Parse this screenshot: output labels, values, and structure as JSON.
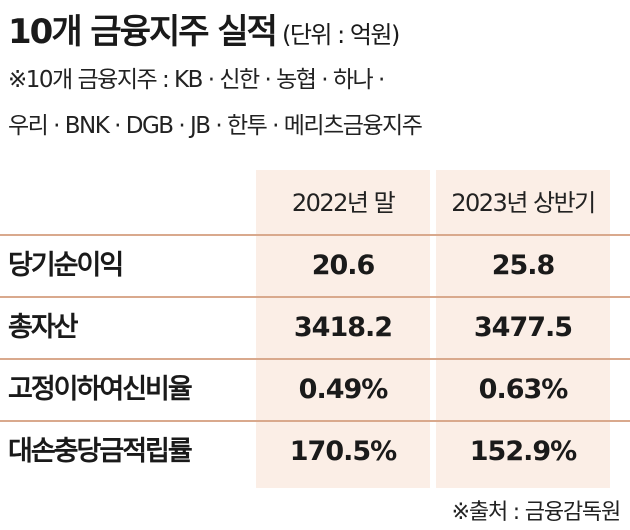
{
  "title": "10개 금융지주 실적",
  "unit": "(단위 : 억원)",
  "note_line1": "※10개 금융지주 : KB · 신한 · 농협 · 하나 ·",
  "note_line2": "우리 · BNK · DGB · JB · 한투 · 메리츠금융지주",
  "source": "※출처 : 금융감독원",
  "colors": {
    "column_bg": "#fbeee6",
    "rule": "#d9a98d",
    "text": "#1a1a1a"
  },
  "chart_data": {
    "type": "table",
    "columns": [
      "2022년 말",
      "2023년 상반기"
    ],
    "rows": [
      {
        "label": "당기순이익",
        "values": [
          "20.6",
          "25.8"
        ]
      },
      {
        "label": "총자산",
        "values": [
          "3418.2",
          "3477.5"
        ]
      },
      {
        "label": "고정이하여신비율",
        "values": [
          "0.49%",
          "0.63%"
        ]
      },
      {
        "label": "대손충당금적립률",
        "values": [
          "170.5%",
          "152.9%"
        ]
      }
    ]
  }
}
